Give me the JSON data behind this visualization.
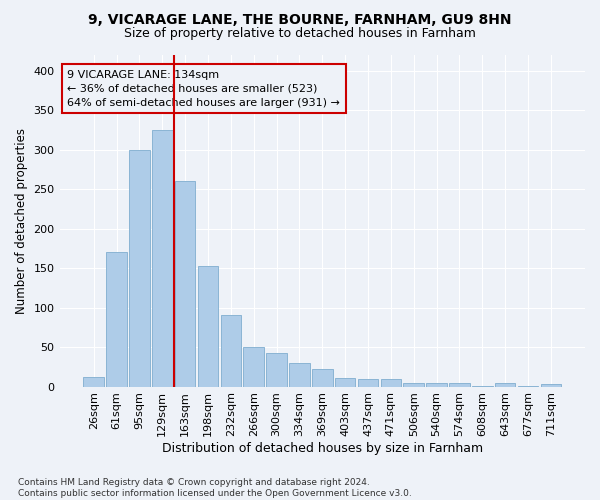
{
  "title1": "9, VICARAGE LANE, THE BOURNE, FARNHAM, GU9 8HN",
  "title2": "Size of property relative to detached houses in Farnham",
  "xlabel": "Distribution of detached houses by size in Farnham",
  "ylabel": "Number of detached properties",
  "footnote": "Contains HM Land Registry data © Crown copyright and database right 2024.\nContains public sector information licensed under the Open Government Licence v3.0.",
  "bar_labels": [
    "26sqm",
    "61sqm",
    "95sqm",
    "129sqm",
    "163sqm",
    "198sqm",
    "232sqm",
    "266sqm",
    "300sqm",
    "334sqm",
    "369sqm",
    "403sqm",
    "437sqm",
    "471sqm",
    "506sqm",
    "540sqm",
    "574sqm",
    "608sqm",
    "643sqm",
    "677sqm",
    "711sqm"
  ],
  "bar_values": [
    12,
    170,
    300,
    325,
    260,
    153,
    91,
    50,
    42,
    30,
    22,
    11,
    10,
    10,
    5,
    5,
    5,
    1,
    5,
    1,
    3
  ],
  "bar_color": "#aecce8",
  "bar_edge_color": "#8ab4d4",
  "property_line_x": 3.5,
  "property_line_color": "#cc0000",
  "annotation_text_line1": "9 VICARAGE LANE: 134sqm",
  "annotation_text_line2": "← 36% of detached houses are smaller (523)",
  "annotation_text_line3": "64% of semi-detached houses are larger (931) →",
  "annotation_box_color": "#cc0000",
  "ylim": [
    0,
    420
  ],
  "yticks": [
    0,
    50,
    100,
    150,
    200,
    250,
    300,
    350,
    400
  ],
  "bg_color": "#eef2f8",
  "grid_color": "#ffffff",
  "title1_fontsize": 10,
  "title2_fontsize": 9,
  "xlabel_fontsize": 9,
  "ylabel_fontsize": 8.5,
  "tick_fontsize": 8,
  "annot_fontsize": 8
}
